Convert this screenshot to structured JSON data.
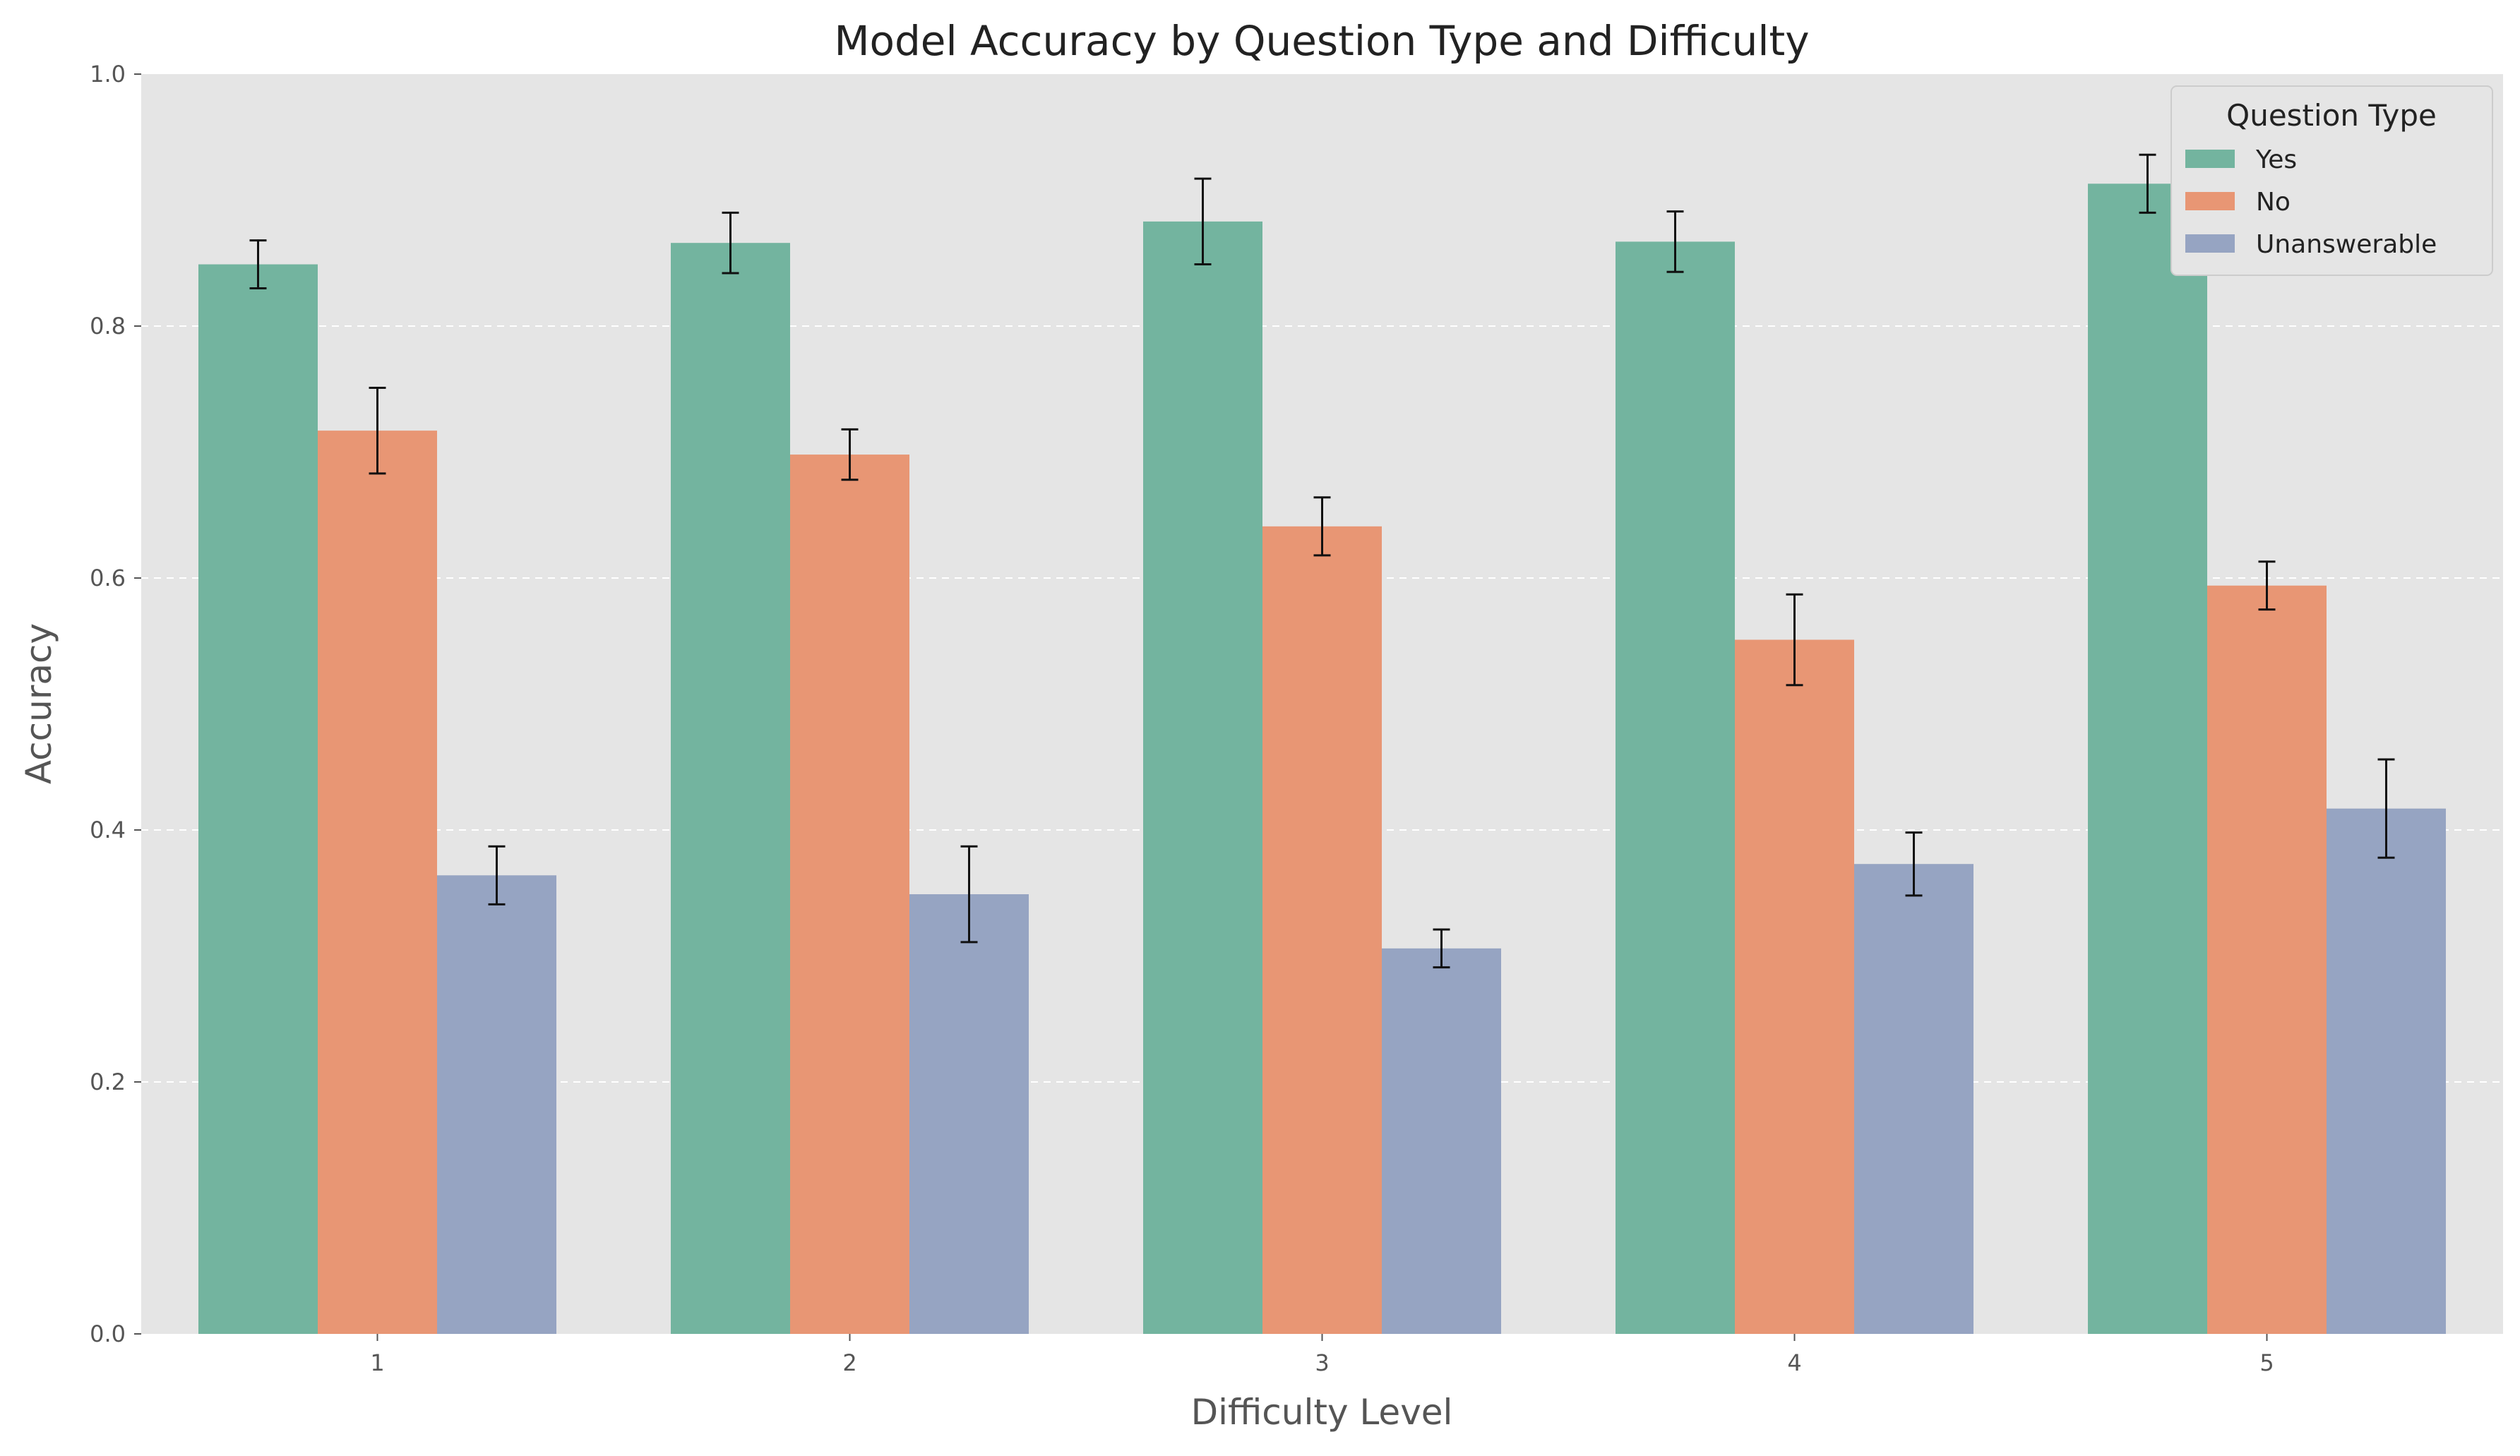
{
  "chart_data": {
    "type": "bar",
    "title": "Model Accuracy by Question Type and Difficulty",
    "xlabel": "Difficulty Level",
    "ylabel": "Accuracy",
    "categories": [
      "1",
      "2",
      "3",
      "4",
      "5"
    ],
    "ylim": [
      0,
      1
    ],
    "yticks": [
      "0.0",
      "0.2",
      "0.4",
      "0.6",
      "0.8",
      "1.0"
    ],
    "grid": "horizontal dashed",
    "legend": {
      "title": "Question Type",
      "placement": "top-right"
    },
    "series": [
      {
        "name": "Yes",
        "color": "#73b49f",
        "values": [
          0.849,
          0.866,
          0.883,
          0.867,
          0.913
        ],
        "errors": [
          0.019,
          0.024,
          0.034,
          0.024,
          0.023
        ]
      },
      {
        "name": "No",
        "color": "#e89674",
        "values": [
          0.717,
          0.698,
          0.641,
          0.551,
          0.594
        ],
        "errors": [
          0.034,
          0.02,
          0.023,
          0.036,
          0.019
        ]
      },
      {
        "name": "Unanswerable",
        "color": "#96a4c2",
        "values": [
          0.364,
          0.349,
          0.306,
          0.373,
          0.417
        ],
        "errors": [
          0.023,
          0.038,
          0.015,
          0.025,
          0.039
        ]
      }
    ]
  }
}
